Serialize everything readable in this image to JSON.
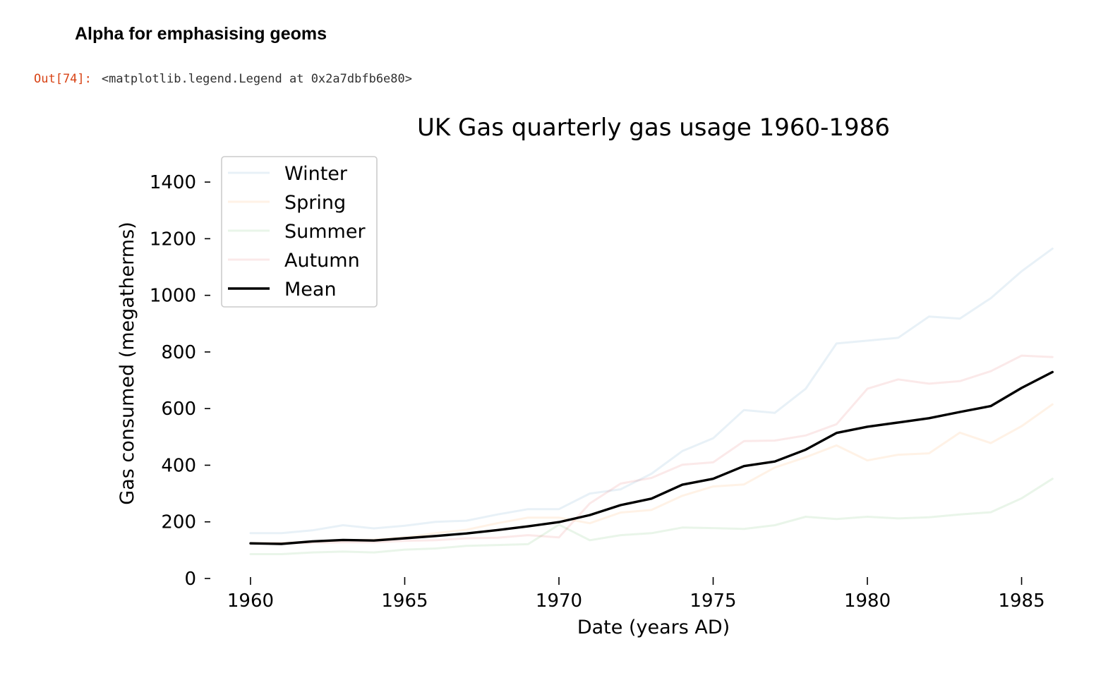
{
  "notebook": {
    "heading": "Alpha for emphasising geoms",
    "out_prompt": "Out[74]:",
    "out_text": "<matplotlib.legend.Legend at 0x2a7dbfb6e80>"
  },
  "chart_data": {
    "type": "line",
    "title": "UK Gas quarterly gas usage 1960-1986",
    "xlabel": "Date (years AD)",
    "ylabel": "Gas consumed (megatherms)",
    "x": [
      1960,
      1961,
      1962,
      1963,
      1964,
      1965,
      1966,
      1967,
      1968,
      1969,
      1970,
      1971,
      1972,
      1973,
      1974,
      1975,
      1976,
      1977,
      1978,
      1979,
      1980,
      1981,
      1982,
      1983,
      1984,
      1985,
      1986
    ],
    "xlim": [
      1959.2,
      1986.2
    ],
    "ylim": [
      0,
      1470
    ],
    "xticks": [
      1960,
      1965,
      1970,
      1975,
      1980,
      1985
    ],
    "yticks": [
      0,
      200,
      400,
      600,
      800,
      1000,
      1200,
      1400
    ],
    "legend_position": "top-left",
    "grid": false,
    "series": [
      {
        "name": "Winter",
        "color": "#1f77b4",
        "opacity": 0.1,
        "values": [
          160,
          160,
          170,
          188,
          177,
          186,
          200,
          204,
          226,
          245,
          245,
          300,
          315,
          370,
          450,
          495,
          595,
          585,
          670,
          830,
          840,
          850,
          925,
          918,
          990,
          1085,
          1165
        ]
      },
      {
        "name": "Spring",
        "color": "#ff7f0e",
        "opacity": 0.1,
        "values": [
          125,
          125,
          130,
          135,
          137,
          145,
          160,
          172,
          195,
          215,
          215,
          195,
          233,
          242,
          292,
          325,
          332,
          392,
          428,
          470,
          417,
          437,
          442,
          515,
          478,
          538,
          615
        ]
      },
      {
        "name": "Summer",
        "color": "#2ca02c",
        "opacity": 0.1,
        "values": [
          86,
          86,
          92,
          95,
          92,
          102,
          106,
          115,
          118,
          121,
          190,
          135,
          153,
          160,
          180,
          178,
          175,
          188,
          218,
          210,
          218,
          212,
          216,
          226,
          234,
          283,
          352
        ]
      },
      {
        "name": "Autumn",
        "color": "#d62728",
        "opacity": 0.1,
        "values": [
          123,
          124,
          126,
          128,
          128,
          133,
          135,
          142,
          144,
          153,
          145,
          265,
          335,
          355,
          402,
          410,
          485,
          487,
          505,
          545,
          670,
          703,
          688,
          697,
          732,
          787,
          782
        ]
      },
      {
        "name": "Mean",
        "color": "#000000",
        "opacity": 1,
        "values": [
          124,
          122,
          131,
          136,
          134,
          142,
          150,
          159,
          171,
          184,
          199,
          224,
          259,
          282,
          331,
          352,
          397,
          413,
          455,
          514,
          536,
          551,
          566,
          588,
          609,
          673,
          729
        ]
      }
    ]
  }
}
